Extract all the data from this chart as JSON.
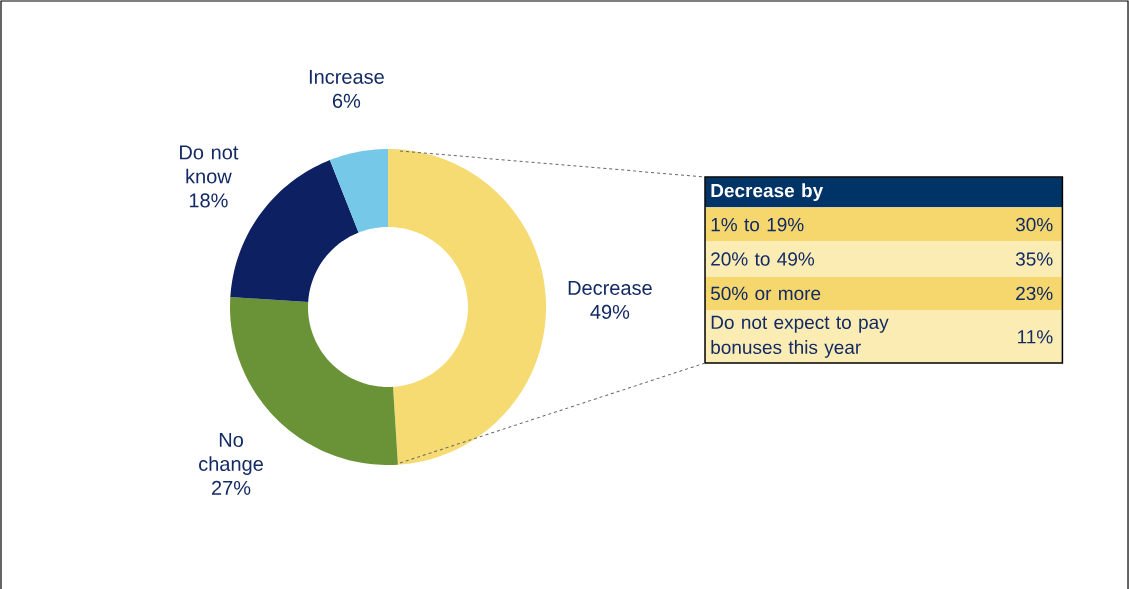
{
  "chart_data": [
    {
      "type": "donut",
      "categories": [
        "Decrease",
        "No change",
        "Do not know",
        "Increase"
      ],
      "values": [
        49,
        27,
        18,
        6
      ],
      "value_labels": [
        "49%",
        "27%",
        "18%",
        "6%"
      ],
      "colors": [
        "#f6da72",
        "#6a9337",
        "#0c2062",
        "#75c8e8"
      ]
    },
    {
      "type": "other",
      "title": "Decrease by",
      "categories": [
        "1% to 19%",
        "20% to 49%",
        "50% or more",
        "Do not expect to pay bonuses this year"
      ],
      "value_labels": [
        "30%",
        "35%",
        "23%",
        "11%"
      ]
    }
  ]
}
